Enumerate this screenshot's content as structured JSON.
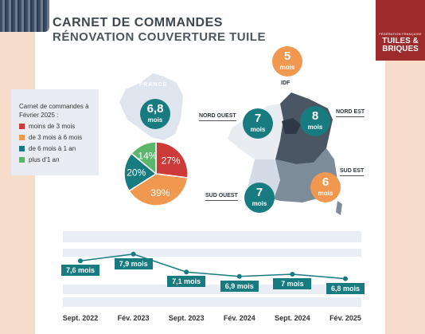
{
  "header": {
    "title": "CARNET DE COMMANDES",
    "subtitle": "RÉNOVATION COUVERTURE TUILE"
  },
  "brand": {
    "org": "FÉDÉRATION FRANÇAISE",
    "name_line1": "TUILES &",
    "name_line2": "BRIQUES",
    "color": "#9e2b2b"
  },
  "legend": {
    "title": "Carnet de commandes à Février 2025 :",
    "items": [
      {
        "label": "moins de 3 mois",
        "color": "#cc3a3a"
      },
      {
        "label": "de 3 mois à 6 mois",
        "color": "#f0984f"
      },
      {
        "label": "de 6 mois à 1 an",
        "color": "#187b80"
      },
      {
        "label": "plus d'1 an",
        "color": "#5bb56b"
      }
    ]
  },
  "map": {
    "france_label": "FRANCE",
    "national": {
      "value": "6,8",
      "unit": "mois"
    },
    "regions": [
      {
        "name": "IDF",
        "value": "5",
        "unit": "mois",
        "style": "orange"
      },
      {
        "name": "NORD OUEST",
        "value": "7",
        "unit": "mois",
        "style": "teal"
      },
      {
        "name": "NORD EST",
        "value": "8",
        "unit": "mois",
        "style": "teal"
      },
      {
        "name": "SUD EST",
        "value": "6",
        "unit": "mois",
        "style": "orange"
      },
      {
        "name": "SUD OUEST",
        "value": "7",
        "unit": "mois",
        "style": "teal"
      }
    ]
  },
  "chart_data": [
    {
      "type": "pie",
      "title": "",
      "slices": [
        {
          "label": "moins de 3 mois",
          "value": 27,
          "display": "27%",
          "color": "#cc3a3a"
        },
        {
          "label": "de 3 mois à 6 mois",
          "value": 39,
          "display": "39%",
          "color": "#f0984f"
        },
        {
          "label": "de 6 mois à 1 an",
          "value": 20,
          "display": "20%",
          "color": "#187b80"
        },
        {
          "label": "plus d'1 an",
          "value": 14,
          "display": "14%",
          "color": "#5bb56b"
        }
      ]
    },
    {
      "type": "line",
      "title": "",
      "categories": [
        "Sept. 2022",
        "Fév. 2023",
        "Sept. 2023",
        "Fév. 2024",
        "Sept. 2024",
        "Fév. 2025"
      ],
      "values": [
        7.6,
        7.9,
        7.1,
        6.9,
        7.0,
        6.8
      ],
      "data_labels": [
        "7,6 mois",
        "7,9 mois",
        "7,1 mois",
        "6,9 mois",
        "7 mois",
        "6,8 mois"
      ],
      "ylim": [
        5,
        10
      ],
      "grid": false,
      "color": "#187b80"
    }
  ]
}
